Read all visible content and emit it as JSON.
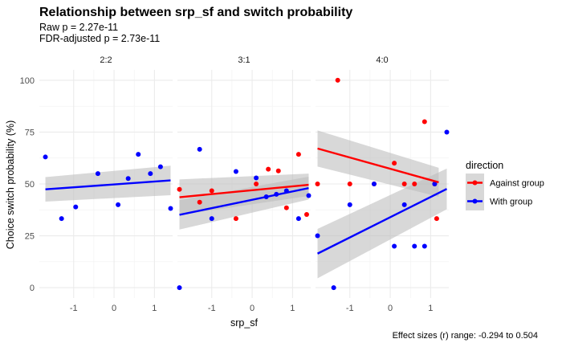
{
  "chart_data": {
    "type": "scatter",
    "title": "Relationship between srp_sf and switch probability",
    "subtitle_lines": [
      "Raw p = 2.27e-11",
      "FDR-adjusted p = 2.73e-11"
    ],
    "xlabel": "srp_sf",
    "ylabel": "Choice switch probability (%)",
    "caption": "Effect sizes (r) range: -0.294 to 0.504",
    "xlim": [
      -1.85,
      1.45
    ],
    "ylim": [
      -5,
      105
    ],
    "x_ticks": [
      -1,
      0,
      1
    ],
    "x_tick_labels": [
      "-1",
      "0",
      "1"
    ],
    "y_ticks": [
      0,
      25,
      50,
      75,
      100
    ],
    "y_tick_labels": [
      "0",
      "25",
      "50",
      "75",
      "100"
    ],
    "grid": true,
    "legend": {
      "title": "direction",
      "position": "right",
      "entries": [
        {
          "label": "Against group",
          "color": "#ff0000"
        },
        {
          "label": "With group",
          "color": "#0000ff"
        }
      ]
    },
    "colors": {
      "Against group": "#ff0000",
      "With group": "#0000ff",
      "band": "#bebebe"
    },
    "panels": [
      {
        "label": "2:2",
        "series": [
          {
            "group": "With group",
            "points": [
              [
                -1.7,
                63
              ],
              [
                -1.3,
                33.3
              ],
              [
                -0.95,
                38.9
              ],
              [
                -0.4,
                55
              ],
              [
                0.1,
                40
              ],
              [
                0.35,
                52.6
              ],
              [
                0.6,
                64.3
              ],
              [
                0.9,
                55
              ],
              [
                1.15,
                58.3
              ],
              [
                1.4,
                38.2
              ]
            ],
            "fit": {
              "x": [
                -1.7,
                1.4
              ],
              "y": [
                47.4,
                51.7
              ]
            },
            "band": {
              "lower": [
                41.5,
                44.6
              ],
              "upper": [
                53.3,
                58.8
              ]
            }
          }
        ]
      },
      {
        "label": "3:1",
        "series": [
          {
            "group": "Against group",
            "points": [
              [
                -1.8,
                47.4
              ],
              [
                -1.3,
                41.2
              ],
              [
                -1.0,
                46.7
              ],
              [
                -0.4,
                33.3
              ],
              [
                0.1,
                50
              ],
              [
                0.4,
                57.1
              ],
              [
                0.65,
                56.3
              ],
              [
                0.85,
                38.5
              ],
              [
                1.15,
                64.3
              ],
              [
                1.35,
                35.3
              ]
            ],
            "fit": {
              "x": [
                -1.8,
                1.4
              ],
              "y": [
                43.6,
                49.6
              ]
            },
            "band": {
              "lower": [
                35,
                44.2
              ],
              "upper": [
                52.2,
                55
              ]
            }
          },
          {
            "group": "With group",
            "points": [
              [
                -1.8,
                0
              ],
              [
                -1.3,
                66.7
              ],
              [
                -1.0,
                33.3
              ],
              [
                -0.4,
                56
              ],
              [
                0.1,
                52.9
              ],
              [
                0.35,
                43.8
              ],
              [
                0.6,
                45
              ],
              [
                0.85,
                46.7
              ],
              [
                1.15,
                33.3
              ],
              [
                1.4,
                44.4
              ]
            ],
            "fit": {
              "x": [
                -1.8,
                1.4
              ],
              "y": [
                35.1,
                48
              ]
            },
            "band": {
              "lower": [
                28,
                42.5
              ],
              "upper": [
                42.2,
                53.5
              ]
            }
          }
        ]
      },
      {
        "label": "4:0",
        "series": [
          {
            "group": "Against group",
            "points": [
              [
                -1.8,
                50
              ],
              [
                -1.3,
                100
              ],
              [
                -1.0,
                50
              ],
              [
                -0.4,
                50
              ],
              [
                0.1,
                60
              ],
              [
                0.35,
                50
              ],
              [
                0.6,
                50
              ],
              [
                0.85,
                80
              ],
              [
                1.1,
                50
              ],
              [
                1.15,
                33.3
              ]
            ],
            "fit": {
              "x": [
                -1.8,
                1.2
              ],
              "y": [
                67.1,
                50.8
              ]
            },
            "band": {
              "lower": [
                58.4,
                43.8
              ],
              "upper": [
                75.8,
                57.8
              ]
            }
          },
          {
            "group": "With group",
            "points": [
              [
                -1.8,
                25
              ],
              [
                -1.4,
                0
              ],
              [
                -1.0,
                40
              ],
              [
                -0.4,
                50
              ],
              [
                0.1,
                20
              ],
              [
                0.35,
                40
              ],
              [
                0.6,
                20
              ],
              [
                0.85,
                20
              ],
              [
                1.1,
                50
              ],
              [
                1.4,
                75
              ]
            ],
            "fit": {
              "x": [
                -1.8,
                1.4
              ],
              "y": [
                16.4,
                47.6
              ]
            },
            "band": {
              "lower": [
                4.5,
                37.8
              ],
              "upper": [
                28.3,
                57.4
              ]
            }
          }
        ]
      }
    ]
  }
}
